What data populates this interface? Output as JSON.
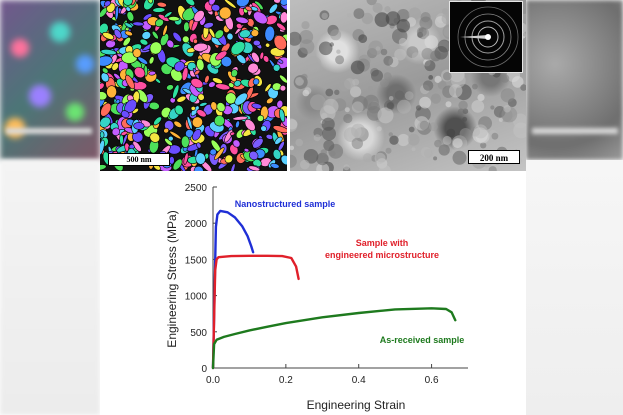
{
  "ebsd_panel": {
    "scale_label": "500 nm"
  },
  "tem_panel": {
    "scale_label": "200 nm"
  },
  "colors": {
    "nanostructured": "#1f2fd6",
    "engineered": "#e0202a",
    "as_received": "#1e7a1e",
    "axis": "#444444"
  },
  "chart_data": {
    "type": "line",
    "title": "",
    "xlabel": "Engineering Strain",
    "ylabel": "Engineering Stress (MPa)",
    "xlim": [
      0,
      0.7
    ],
    "ylim": [
      0,
      2500
    ],
    "xticks": [
      0,
      0.2,
      0.4,
      0.6
    ],
    "xtick_labels": [
      "0.0",
      "0.2",
      "0.4",
      "0.6"
    ],
    "yticks": [
      0,
      500,
      1000,
      1500,
      2000,
      2500
    ],
    "ytick_labels": [
      "0",
      "500",
      "1000",
      "1500",
      "2000",
      "2500"
    ],
    "grid": false,
    "legend": "none",
    "series": [
      {
        "name": "Nanostructured sample",
        "label_lines": [
          "Nanostructured sample"
        ],
        "color_key": "nanostructured",
        "x": [
          0,
          0.008,
          0.012,
          0.02,
          0.04,
          0.06,
          0.08,
          0.095,
          0.105,
          0.11
        ],
        "y": [
          0,
          1950,
          2120,
          2170,
          2150,
          2080,
          1960,
          1820,
          1680,
          1600
        ]
      },
      {
        "name": "Sample with engineered microstructure",
        "label_lines": [
          "Sample with",
          "engineered microstructure"
        ],
        "color_key": "engineered",
        "x": [
          0,
          0.006,
          0.01,
          0.015,
          0.05,
          0.1,
          0.15,
          0.19,
          0.215,
          0.228,
          0.235
        ],
        "y": [
          0,
          1350,
          1500,
          1530,
          1545,
          1550,
          1550,
          1545,
          1520,
          1400,
          1230
        ]
      },
      {
        "name": "As-received sample",
        "label_lines": [
          "As-received sample"
        ],
        "color_key": "as_received",
        "x": [
          0,
          0.003,
          0.01,
          0.03,
          0.06,
          0.1,
          0.15,
          0.2,
          0.3,
          0.4,
          0.5,
          0.6,
          0.64,
          0.655,
          0.665
        ],
        "y": [
          0,
          330,
          390,
          430,
          470,
          520,
          570,
          620,
          700,
          760,
          810,
          825,
          815,
          770,
          660
        ]
      }
    ]
  }
}
